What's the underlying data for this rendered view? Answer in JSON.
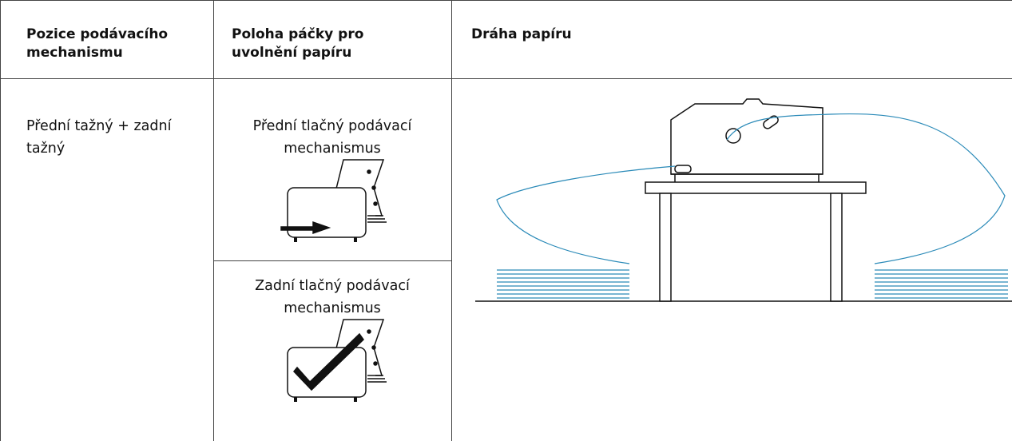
{
  "table": {
    "header": [
      {
        "lines": [
          "Pozice podávacího",
          "mechanismu"
        ]
      },
      {
        "lines": [
          "Poloha páčky pro",
          "uvolnění papíru"
        ]
      },
      {
        "lines": [
          "Dráha papíru"
        ]
      }
    ],
    "rows": [
      {
        "position": {
          "lines": [
            "Přední tažný + zadní",
            "tažný"
          ]
        },
        "levers": [
          {
            "lines": [
              "Přední tlačný podávací",
              "mechanismus"
            ]
          },
          {
            "lines": [
              "Zadní tlačný podávací",
              "mechanismus"
            ]
          }
        ]
      }
    ]
  }
}
